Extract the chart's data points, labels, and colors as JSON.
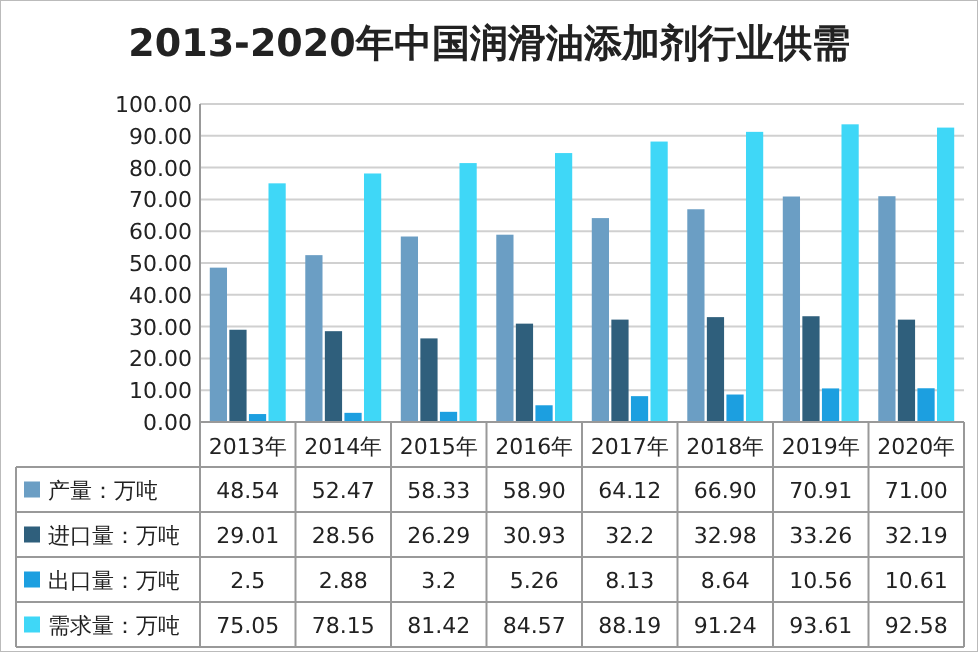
{
  "chart_data": {
    "type": "bar",
    "title": "2013-2020年中国润滑油添加剂行业供需",
    "categories": [
      "2013年",
      "2014年",
      "2015年",
      "2016年",
      "2017年",
      "2018年",
      "2019年",
      "2020年"
    ],
    "series": [
      {
        "name": "产量：万吨",
        "color": "#6b9ec4",
        "values": [
          48.54,
          52.47,
          58.33,
          58.9,
          64.12,
          66.9,
          70.91,
          71.0
        ],
        "value_labels": [
          "48.54",
          "52.47",
          "58.33",
          "58.90",
          "64.12",
          "66.90",
          "70.91",
          "71.00"
        ]
      },
      {
        "name": "进口量：万吨",
        "color": "#2f5f7c",
        "values": [
          29.01,
          28.56,
          26.29,
          30.93,
          32.2,
          32.98,
          33.26,
          32.19
        ],
        "value_labels": [
          "29.01",
          "28.56",
          "26.29",
          "30.93",
          "32.2",
          "32.98",
          "33.26",
          "32.19"
        ]
      },
      {
        "name": "出口量：万吨",
        "color": "#1c9fe0",
        "values": [
          2.5,
          2.88,
          3.2,
          5.26,
          8.13,
          8.64,
          10.56,
          10.61
        ],
        "value_labels": [
          "2.5",
          "2.88",
          "3.2",
          "5.26",
          "8.13",
          "8.64",
          "10.56",
          "10.61"
        ]
      },
      {
        "name": "需求量：万吨",
        "color": "#3fd7f7",
        "values": [
          75.05,
          78.15,
          81.42,
          84.57,
          88.19,
          91.24,
          93.61,
          92.58
        ],
        "value_labels": [
          "75.05",
          "78.15",
          "81.42",
          "84.57",
          "88.19",
          "91.24",
          "93.61",
          "92.58"
        ]
      }
    ],
    "ylim": [
      0,
      100
    ],
    "yticks": [
      {
        "value": 0,
        "label": "0.00"
      },
      {
        "value": 10,
        "label": "10.00"
      },
      {
        "value": 20,
        "label": "20.00"
      },
      {
        "value": 30,
        "label": "30.00"
      },
      {
        "value": 40,
        "label": "40.00"
      },
      {
        "value": 50,
        "label": "50.00"
      },
      {
        "value": 60,
        "label": "60.00"
      },
      {
        "value": 70,
        "label": "70.00"
      },
      {
        "value": 80,
        "label": "80.00"
      },
      {
        "value": 90,
        "label": "90.00"
      },
      {
        "value": 100,
        "label": "100.00"
      }
    ],
    "grid": true,
    "legend": "bottom"
  }
}
